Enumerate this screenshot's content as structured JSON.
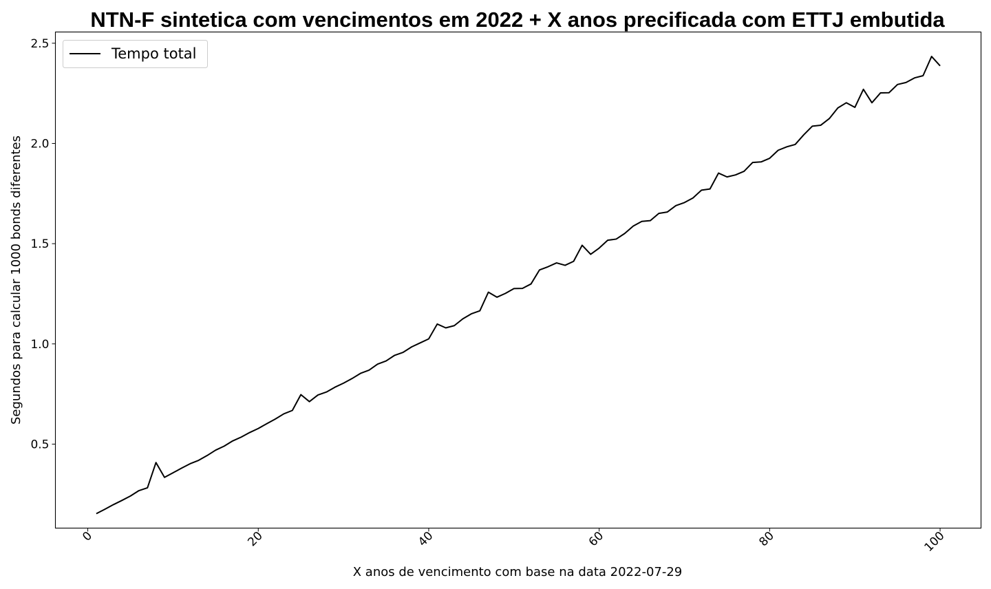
{
  "chart_data": {
    "type": "line",
    "title": "NTN-F sintetica com vencimentos em 2022 + X anos precificada com ETTJ embutida",
    "xlabel": "X anos de vencimento com base na data 2022-07-29",
    "ylabel": "Segundos para calcular 1000 bonds diferentes",
    "xlim": [
      -3.8,
      104.8
    ],
    "ylim": [
      0.081,
      2.556
    ],
    "x_ticks": [
      "0",
      "20",
      "40",
      "60",
      "80",
      "100"
    ],
    "y_ticks": [
      "0.5",
      "1.0",
      "1.5",
      "2.0",
      "2.5"
    ],
    "grid": false,
    "legend_position": "upper-left",
    "series": [
      {
        "name": "Tempo total",
        "color": "#000000",
        "x": [
          1,
          2,
          3,
          4,
          5,
          6,
          7,
          8,
          9,
          10,
          11,
          12,
          13,
          14,
          15,
          16,
          17,
          18,
          19,
          20,
          21,
          22,
          23,
          24,
          25,
          26,
          27,
          28,
          29,
          30,
          31,
          32,
          33,
          34,
          35,
          36,
          37,
          38,
          39,
          40,
          41,
          42,
          43,
          44,
          45,
          46,
          47,
          48,
          49,
          50,
          51,
          52,
          53,
          54,
          55,
          56,
          57,
          58,
          59,
          60,
          61,
          62,
          63,
          64,
          65,
          66,
          67,
          68,
          69,
          70,
          71,
          72,
          73,
          74,
          75,
          76,
          77,
          78,
          79,
          80,
          81,
          82,
          83,
          84,
          85,
          86,
          87,
          88,
          89,
          90,
          91,
          92,
          93,
          94,
          95,
          96,
          97,
          98,
          99,
          100
        ],
        "y": [
          0.153,
          0.175,
          0.198,
          0.219,
          0.241,
          0.268,
          0.282,
          0.408,
          0.334,
          0.357,
          0.38,
          0.402,
          0.419,
          0.443,
          0.47,
          0.49,
          0.516,
          0.535,
          0.558,
          0.578,
          0.602,
          0.625,
          0.651,
          0.668,
          0.747,
          0.712,
          0.745,
          0.76,
          0.784,
          0.804,
          0.827,
          0.853,
          0.869,
          0.899,
          0.915,
          0.943,
          0.958,
          0.985,
          1.005,
          1.025,
          1.099,
          1.08,
          1.091,
          1.125,
          1.15,
          1.165,
          1.258,
          1.233,
          1.252,
          1.276,
          1.277,
          1.299,
          1.369,
          1.385,
          1.404,
          1.392,
          1.412,
          1.492,
          1.447,
          1.478,
          1.517,
          1.523,
          1.551,
          1.588,
          1.611,
          1.615,
          1.651,
          1.658,
          1.69,
          1.705,
          1.728,
          1.767,
          1.773,
          1.852,
          1.833,
          1.843,
          1.861,
          1.905,
          1.908,
          1.926,
          1.966,
          1.983,
          1.995,
          2.043,
          2.086,
          2.091,
          2.124,
          2.177,
          2.203,
          2.18,
          2.27,
          2.203,
          2.252,
          2.253,
          2.294,
          2.304,
          2.327,
          2.338,
          2.434,
          2.387
        ]
      }
    ]
  }
}
